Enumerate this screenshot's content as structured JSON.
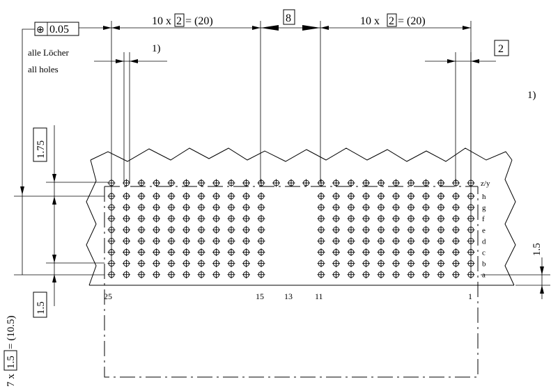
{
  "tolerance": {
    "symbol": "⊕",
    "value": "0.05"
  },
  "notes": {
    "all_holes_de": "alle Löcher",
    "all_holes_en": "all holes",
    "footnote_left": "1)",
    "footnote_right": "1)"
  },
  "dims": {
    "left_pitch_prefix": "10 x",
    "left_pitch_box": "2",
    "left_pitch_suffix": "= (20)",
    "right_pitch_prefix": "10 x",
    "right_pitch_box": "2",
    "right_pitch_suffix": "= (20)",
    "gap": "8",
    "right_spacing": "2",
    "top_row_offset": "1.75",
    "bottom_row_offset": "1.5",
    "edge_offset": "1.5",
    "vertical_prefix": "7 x",
    "vertical_box": "1.5",
    "vertical_suffix": "= (10.5)"
  },
  "rows": {
    "top": "z/y",
    "labels": [
      "h",
      "g",
      "f",
      "e",
      "d",
      "c",
      "b",
      "a"
    ]
  },
  "columns": {
    "labels": [
      "25",
      "15",
      "13",
      "11",
      "1"
    ],
    "left_block_count": 11,
    "right_block_count": 11,
    "top_row_count": 25
  }
}
